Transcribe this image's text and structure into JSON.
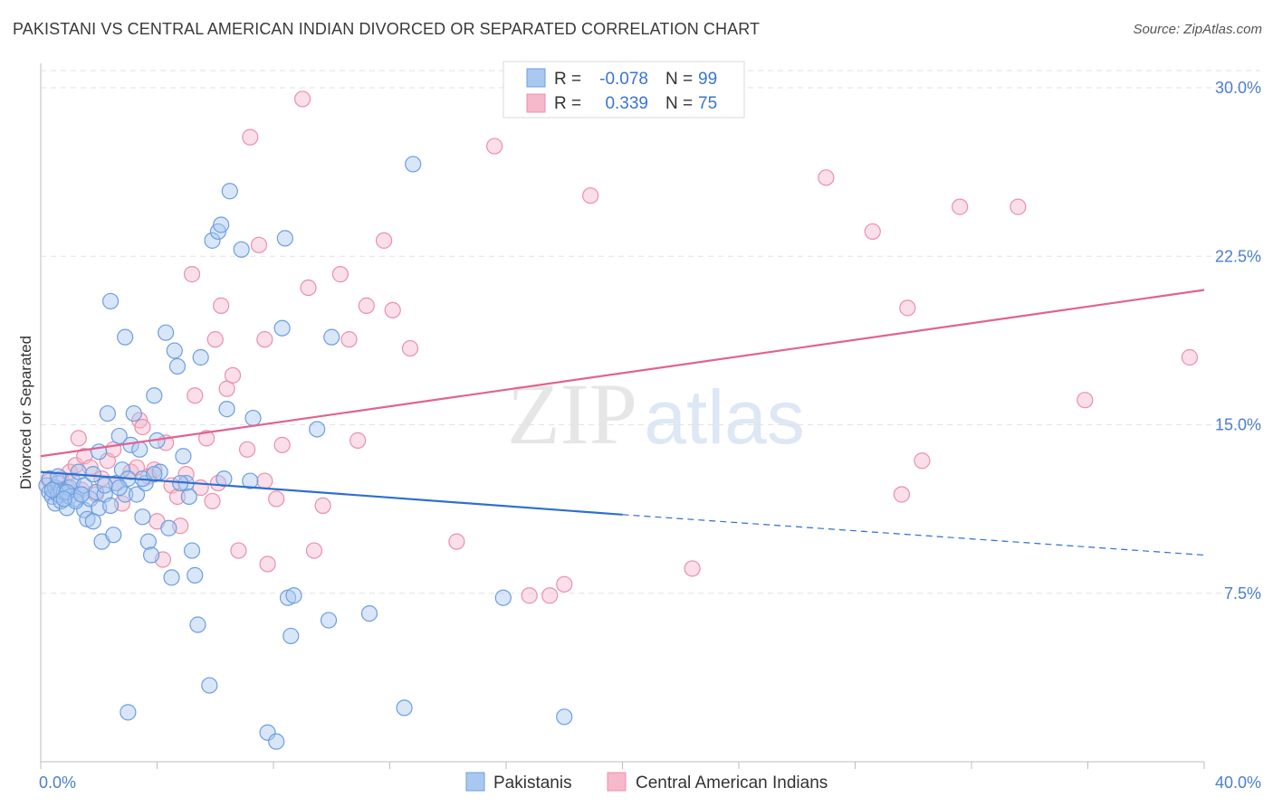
{
  "header": {
    "title": "PAKISTANI VS CENTRAL AMERICAN INDIAN DIVORCED OR SEPARATED CORRELATION CHART",
    "source": "Source: ZipAtlas.com"
  },
  "watermark": {
    "zip": "ZIP",
    "atlas": "atlas"
  },
  "stats": {
    "r_label": "R =",
    "n_label": "N =",
    "blue": {
      "r": "-0.078",
      "n": "99"
    },
    "pink": {
      "r": "0.339",
      "n": "75"
    }
  },
  "colors": {
    "blue_fill": "#a9c8f0",
    "blue_stroke": "#6d9ee0",
    "blue_line": "#2f6fce",
    "pink_fill": "#f5b9cb",
    "pink_stroke": "#eb8fab",
    "pink_line": "#e06390",
    "tick_text": "#4a7fd0"
  },
  "chart_data": {
    "type": "scatter",
    "title": "PAKISTANI VS CENTRAL AMERICAN INDIAN DIVORCED OR SEPARATED CORRELATION CHART",
    "xlabel": "",
    "ylabel": "Divorced or Separated",
    "xlim": [
      0,
      40
    ],
    "ylim": [
      0,
      30
    ],
    "x_tick_labels": [
      "0.0%",
      "40.0%"
    ],
    "y_ticks": [
      7.5,
      15.0,
      22.5,
      30.0
    ],
    "y_tick_labels": [
      "7.5%",
      "15.0%",
      "22.5%",
      "30.0%"
    ],
    "grid": "horizontal dashed",
    "legend_position": "bottom-center",
    "series": [
      {
        "name": "Pakistanis",
        "color": "#6d9ee0",
        "trend": {
          "x0": 0,
          "y0": 12.9,
          "x1": 20,
          "y1": 11.0,
          "dashed_to_x": 40,
          "dashed_to_y": 9.2
        },
        "points": [
          [
            0.2,
            12.3
          ],
          [
            0.3,
            12.0
          ],
          [
            0.3,
            12.6
          ],
          [
            0.4,
            11.8
          ],
          [
            0.5,
            12.2
          ],
          [
            0.5,
            11.5
          ],
          [
            0.6,
            12.4
          ],
          [
            0.6,
            11.9
          ],
          [
            0.7,
            12.1
          ],
          [
            0.7,
            11.6
          ],
          [
            0.8,
            12.0
          ],
          [
            0.9,
            11.3
          ],
          [
            1.0,
            12.2
          ],
          [
            1.0,
            11.8
          ],
          [
            1.1,
            12.5
          ],
          [
            1.2,
            11.7
          ],
          [
            1.3,
            12.9
          ],
          [
            1.4,
            11.9
          ],
          [
            1.5,
            11.2
          ],
          [
            1.5,
            12.3
          ],
          [
            1.6,
            10.8
          ],
          [
            1.7,
            11.7
          ],
          [
            1.8,
            12.8
          ],
          [
            1.9,
            12.0
          ],
          [
            2.0,
            13.8
          ],
          [
            2.0,
            11.3
          ],
          [
            2.1,
            9.8
          ],
          [
            2.2,
            11.9
          ],
          [
            2.3,
            15.5
          ],
          [
            2.4,
            11.4
          ],
          [
            2.5,
            10.1
          ],
          [
            2.6,
            12.4
          ],
          [
            2.7,
            14.5
          ],
          [
            2.8,
            13.0
          ],
          [
            2.9,
            11.9
          ],
          [
            3.0,
            12.6
          ],
          [
            3.1,
            14.1
          ],
          [
            3.2,
            15.5
          ],
          [
            3.3,
            11.9
          ],
          [
            3.4,
            13.9
          ],
          [
            3.5,
            10.9
          ],
          [
            3.6,
            12.4
          ],
          [
            3.7,
            9.8
          ],
          [
            3.8,
            9.2
          ],
          [
            3.9,
            16.3
          ],
          [
            4.0,
            14.3
          ],
          [
            4.1,
            12.9
          ],
          [
            4.3,
            19.1
          ],
          [
            4.4,
            10.4
          ],
          [
            4.5,
            8.2
          ],
          [
            4.6,
            18.3
          ],
          [
            4.7,
            17.6
          ],
          [
            4.9,
            13.6
          ],
          [
            5.0,
            12.4
          ],
          [
            5.1,
            11.8
          ],
          [
            5.2,
            9.4
          ],
          [
            5.3,
            8.3
          ],
          [
            5.4,
            6.1
          ],
          [
            5.5,
            18.0
          ],
          [
            5.8,
            3.4
          ],
          [
            5.9,
            23.2
          ],
          [
            6.1,
            23.6
          ],
          [
            6.2,
            23.9
          ],
          [
            6.3,
            12.6
          ],
          [
            6.4,
            15.7
          ],
          [
            6.5,
            25.4
          ],
          [
            6.9,
            22.8
          ],
          [
            7.2,
            12.5
          ],
          [
            7.3,
            15.3
          ],
          [
            7.8,
            1.3
          ],
          [
            8.1,
            0.9
          ],
          [
            8.3,
            19.3
          ],
          [
            8.4,
            23.3
          ],
          [
            8.5,
            7.3
          ],
          [
            8.6,
            5.6
          ],
          [
            8.7,
            7.4
          ],
          [
            9.5,
            14.8
          ],
          [
            9.9,
            6.3
          ],
          [
            10.0,
            18.9
          ],
          [
            11.3,
            6.6
          ],
          [
            12.5,
            2.4
          ],
          [
            12.8,
            26.6
          ],
          [
            15.9,
            7.3
          ],
          [
            18.0,
            2.0
          ],
          [
            3.0,
            2.2
          ],
          [
            2.4,
            20.5
          ],
          [
            2.9,
            18.9
          ],
          [
            1.8,
            10.7
          ],
          [
            0.9,
            12.0
          ],
          [
            0.4,
            12.1
          ],
          [
            1.2,
            11.6
          ],
          [
            2.2,
            12.3
          ],
          [
            3.5,
            12.6
          ],
          [
            4.8,
            12.4
          ],
          [
            0.6,
            12.7
          ],
          [
            0.8,
            11.7
          ],
          [
            1.4,
            11.9
          ],
          [
            2.7,
            12.2
          ],
          [
            3.9,
            12.8
          ]
        ]
      },
      {
        "name": "Central American Indians",
        "color": "#eb8fab",
        "trend": {
          "x0": 0,
          "y0": 13.6,
          "x1": 40,
          "y1": 21.0
        },
        "points": [
          [
            0.3,
            12.5
          ],
          [
            0.5,
            12.0
          ],
          [
            0.7,
            12.6
          ],
          [
            0.9,
            12.2
          ],
          [
            1.0,
            12.9
          ],
          [
            1.2,
            13.2
          ],
          [
            1.3,
            14.4
          ],
          [
            1.4,
            12.1
          ],
          [
            1.5,
            13.6
          ],
          [
            1.7,
            13.1
          ],
          [
            1.9,
            11.9
          ],
          [
            2.1,
            12.6
          ],
          [
            2.3,
            13.4
          ],
          [
            2.5,
            13.9
          ],
          [
            2.6,
            12.4
          ],
          [
            2.8,
            11.5
          ],
          [
            3.1,
            12.9
          ],
          [
            3.3,
            13.1
          ],
          [
            3.4,
            15.2
          ],
          [
            3.5,
            14.9
          ],
          [
            3.7,
            12.7
          ],
          [
            3.9,
            13.0
          ],
          [
            4.0,
            10.7
          ],
          [
            4.2,
            9.0
          ],
          [
            4.3,
            14.2
          ],
          [
            4.5,
            12.3
          ],
          [
            4.7,
            11.8
          ],
          [
            4.8,
            10.5
          ],
          [
            5.0,
            12.8
          ],
          [
            5.2,
            21.7
          ],
          [
            5.3,
            16.3
          ],
          [
            5.5,
            12.2
          ],
          [
            5.7,
            14.4
          ],
          [
            5.9,
            11.6
          ],
          [
            6.0,
            18.8
          ],
          [
            6.2,
            20.3
          ],
          [
            6.4,
            16.6
          ],
          [
            6.6,
            17.2
          ],
          [
            6.8,
            9.4
          ],
          [
            7.1,
            13.9
          ],
          [
            7.2,
            27.8
          ],
          [
            7.5,
            23.0
          ],
          [
            7.7,
            18.8
          ],
          [
            7.8,
            8.8
          ],
          [
            8.1,
            11.7
          ],
          [
            8.3,
            14.1
          ],
          [
            9.2,
            21.1
          ],
          [
            9.4,
            9.4
          ],
          [
            9.7,
            11.4
          ],
          [
            10.3,
            21.7
          ],
          [
            10.6,
            18.8
          ],
          [
            10.9,
            14.3
          ],
          [
            11.2,
            20.3
          ],
          [
            11.8,
            23.2
          ],
          [
            12.1,
            20.1
          ],
          [
            12.7,
            18.4
          ],
          [
            14.3,
            9.8
          ],
          [
            15.6,
            27.4
          ],
          [
            16.8,
            7.4
          ],
          [
            17.5,
            7.4
          ],
          [
            18.0,
            7.9
          ],
          [
            18.9,
            25.2
          ],
          [
            22.4,
            8.6
          ],
          [
            27.0,
            26.0
          ],
          [
            28.6,
            23.6
          ],
          [
            29.8,
            20.2
          ],
          [
            29.6,
            11.9
          ],
          [
            30.3,
            13.4
          ],
          [
            31.6,
            24.7
          ],
          [
            33.6,
            24.7
          ],
          [
            35.9,
            16.1
          ],
          [
            39.5,
            18.0
          ],
          [
            9.0,
            29.5
          ],
          [
            6.1,
            12.4
          ],
          [
            7.7,
            12.5
          ]
        ]
      }
    ]
  },
  "legend": {
    "items": [
      {
        "label": "Pakistanis"
      },
      {
        "label": "Central American Indians"
      }
    ]
  }
}
